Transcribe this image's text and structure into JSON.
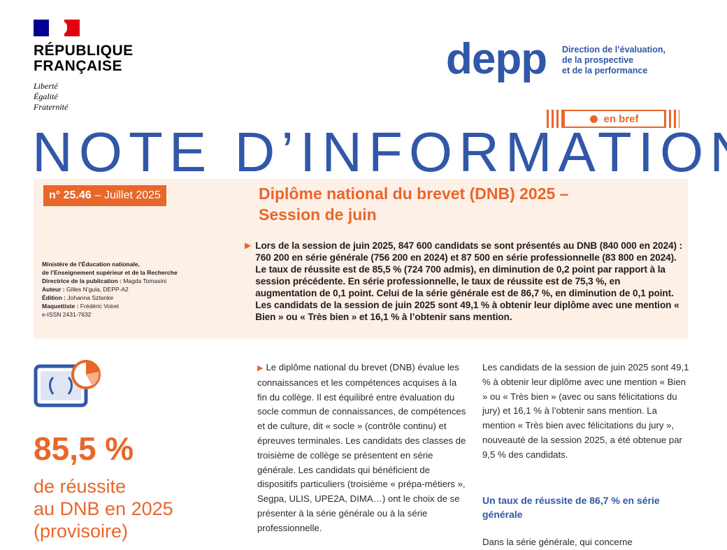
{
  "republique": {
    "name_line1": "RÉPUBLIQUE",
    "name_line2": "FRANÇAISE",
    "motto": [
      "Liberté",
      "Égalité",
      "Fraternité"
    ]
  },
  "depp": {
    "wordmark": "depp",
    "subtitle_lines": [
      "Direction de l’évaluation,",
      "de la prospective",
      "et de la performance"
    ]
  },
  "tag": {
    "label": "en bref"
  },
  "title": "NOTE D’INFORMATION",
  "issue": {
    "number": "n° 25.46",
    "date": "– Juillet 2025"
  },
  "headline_lines": [
    "Diplôme national du brevet (DNB) 2025 –",
    "Session de juin"
  ],
  "credits": [
    {
      "label": "Ministère de l’Éducation nationale,",
      "value": ""
    },
    {
      "label": "de l’Enseignement supérieur et de la Recherche",
      "value": ""
    },
    {
      "label": "Directrice de la publication :",
      "value": "Magda Tomasini"
    },
    {
      "label": "Auteur :",
      "value": "Gilles N’guia, DEPP-A2"
    },
    {
      "label": "Édition :",
      "value": "Johanna Sztanke"
    },
    {
      "label": "Maquettiste :",
      "value": "Frédéric Voiret"
    },
    {
      "label": "",
      "value": "e-ISSN 2431-7632"
    }
  ],
  "summary": "Lors de la session de juin 2025, 847 600 candidats se sont présentés au DNB (840 000 en 2024) : 760 200 en série générale (756 200 en 2024) et 87 500 en série professionnelle (83 800 en 2024). Le taux de réussite est de 85,5 % (724 700 admis), en diminution de 0,2 point par rapport à la session précédente. En série professionnelle, le taux de réussite est de 75,3 %, en augmentation de 0,1 point. Celui de la série générale est de 86,7 %, en diminution de 0,1 point. Les candidats de la session de juin 2025 sont 49,1 % à obtenir leur diplôme avec une mention « Bien » ou « Très bien » et 16,1 % à l’obtenir sans mention.",
  "stat": {
    "value": "85,5 %",
    "caption_lines": [
      "de réussite",
      "au DNB en 2025",
      "(provisoire)"
    ]
  },
  "column1": "Le diplôme national du brevet (DNB) évalue les connaissances et les compétences acquises à la fin du collège. Il est équilibré entre évaluation du socle commun de connaissances, de compétences et de culture, dit « socle » (contrôle continu) et épreuves terminales. Les candidats des classes de troisième de collège se présentent en série générale. Les candidats qui bénéficient de dispositifs particuliers (troisième « prépa-métiers », Segpa, ULIS, UPE2A, DIMA…) ont le choix de se présenter à la série générale ou à la série professionnelle.",
  "column2": "Les candidats de la session de juin 2025 sont 49,1 % à obtenir leur diplôme avec une mention « Bien » ou « Très bien » (avec ou sans félicitations du jury) et 16,1 % à l’obtenir sans mention. La mention « Très bien avec félicitations du jury », nouveauté de la session 2025, a été obtenue par 9,5 % des candidats.",
  "subheading": "Un taux de réussite de 86,7 % en série générale",
  "column2_continued": "Dans la série générale, qui concerne",
  "colors": {
    "blue": "#3157a8",
    "orange": "#e8672b",
    "band": "#fdf0e7"
  }
}
